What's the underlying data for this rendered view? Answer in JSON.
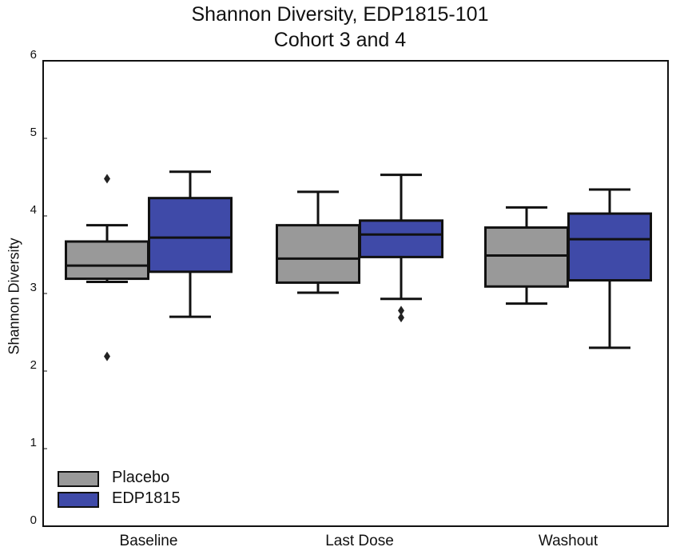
{
  "chart_data": {
    "type": "box",
    "title": "Shannon Diversity, EDP1815-101",
    "subtitle": "Cohort 3 and 4",
    "xlabel": "",
    "ylabel": "Shannon Diversity",
    "ylim": [
      0,
      6
    ],
    "yticks": [
      "0",
      "1",
      "2",
      "3",
      "4",
      "5",
      "6"
    ],
    "categories": [
      "Baseline",
      "Last Dose",
      "Washout"
    ],
    "legend_position": "bottom-left",
    "series": [
      {
        "name": "Placebo",
        "color": "#999999",
        "boxes": [
          {
            "whisker_low": 3.15,
            "q1": 3.19,
            "median": 3.36,
            "q3": 3.67,
            "whisker_high": 3.88,
            "outliers": [
              4.48,
              2.19
            ]
          },
          {
            "whisker_low": 3.01,
            "q1": 3.14,
            "median": 3.45,
            "q3": 3.88,
            "whisker_high": 4.31,
            "outliers": []
          },
          {
            "whisker_low": 2.87,
            "q1": 3.09,
            "median": 3.49,
            "q3": 3.85,
            "whisker_high": 4.11,
            "outliers": []
          }
        ]
      },
      {
        "name": "EDP1815",
        "color": "#3f4aa8",
        "boxes": [
          {
            "whisker_low": 2.7,
            "q1": 3.28,
            "median": 3.72,
            "q3": 4.23,
            "whisker_high": 4.57,
            "outliers": []
          },
          {
            "whisker_low": 2.93,
            "q1": 3.47,
            "median": 3.76,
            "q3": 3.94,
            "whisker_high": 4.53,
            "outliers": [
              2.78,
              2.69
            ]
          },
          {
            "whisker_low": 2.3,
            "q1": 3.17,
            "median": 3.7,
            "q3": 4.03,
            "whisker_high": 4.34,
            "outliers": []
          }
        ]
      }
    ]
  }
}
